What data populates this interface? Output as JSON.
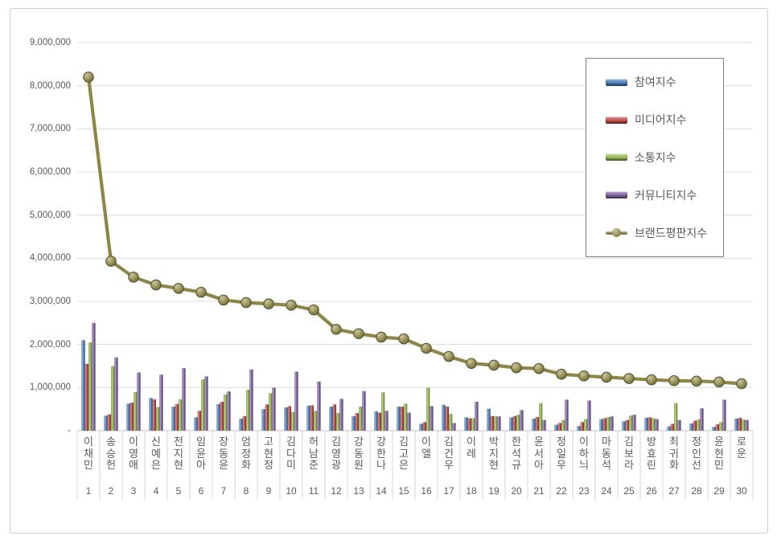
{
  "card": {
    "background": "#ffffff",
    "border_color": "#c9cdd2"
  },
  "chart_data": {
    "type": "bar",
    "subtype": "grouped-bars-with-line-overlay",
    "title": "",
    "categories": [
      "이채민",
      "송승헌",
      "이영애",
      "신예은",
      "전지현",
      "임윤아",
      "장동윤",
      "엄정화",
      "고현정",
      "김다미",
      "허남준",
      "김영광",
      "강동원",
      "강한나",
      "김고은",
      "이엘",
      "김건우",
      "이레",
      "박지현",
      "한석규",
      "윤서아",
      "정일우",
      "이하늬",
      "마동석",
      "김보라",
      "방효린",
      "최귀화",
      "정인선",
      "윤현민",
      "로운"
    ],
    "ranks": [
      "1",
      "2",
      "3",
      "4",
      "5",
      "6",
      "7",
      "8",
      "9",
      "10",
      "11",
      "12",
      "13",
      "14",
      "15",
      "16",
      "17",
      "18",
      "19",
      "20",
      "21",
      "22",
      "23",
      "24",
      "25",
      "26",
      "27",
      "28",
      "29",
      "30"
    ],
    "series": [
      {
        "name": "참여지수",
        "type": "bar",
        "color": "#4f81bd",
        "values": [
          2100000,
          350000,
          630000,
          760000,
          560000,
          310000,
          620000,
          280000,
          500000,
          540000,
          580000,
          560000,
          340000,
          450000,
          560000,
          160000,
          600000,
          310000,
          510000,
          310000,
          280000,
          140000,
          110000,
          270000,
          220000,
          300000,
          100000,
          170000,
          90000,
          280000
        ]
      },
      {
        "name": "미디어지수",
        "type": "bar",
        "color": "#c0504d",
        "values": [
          1550000,
          380000,
          650000,
          730000,
          620000,
          460000,
          670000,
          340000,
          610000,
          570000,
          590000,
          610000,
          410000,
          420000,
          560000,
          200000,
          560000,
          290000,
          340000,
          340000,
          320000,
          180000,
          200000,
          290000,
          250000,
          310000,
          160000,
          230000,
          150000,
          300000
        ]
      },
      {
        "name": "소통지수",
        "type": "bar",
        "color": "#9bbb59",
        "values": [
          2050000,
          1500000,
          900000,
          550000,
          730000,
          1190000,
          840000,
          950000,
          870000,
          430000,
          460000,
          410000,
          560000,
          890000,
          630000,
          1000000,
          390000,
          290000,
          340000,
          370000,
          640000,
          250000,
          270000,
          320000,
          350000,
          290000,
          640000,
          260000,
          200000,
          260000
        ]
      },
      {
        "name": "커뮤니티지수",
        "type": "bar",
        "color": "#8064a2",
        "values": [
          2500000,
          1700000,
          1350000,
          1300000,
          1450000,
          1260000,
          910000,
          1420000,
          1000000,
          1370000,
          1140000,
          740000,
          920000,
          460000,
          420000,
          570000,
          180000,
          670000,
          330000,
          480000,
          250000,
          720000,
          700000,
          330000,
          370000,
          270000,
          250000,
          520000,
          720000,
          250000
        ]
      },
      {
        "name": "브랜드평판지수",
        "type": "line",
        "color": "#8d8747",
        "marker_color": "#9a9457",
        "values": [
          8200000,
          3930000,
          3560000,
          3380000,
          3300000,
          3210000,
          3030000,
          2970000,
          2940000,
          2910000,
          2800000,
          2350000,
          2250000,
          2170000,
          2130000,
          1910000,
          1720000,
          1560000,
          1520000,
          1460000,
          1440000,
          1310000,
          1270000,
          1240000,
          1210000,
          1180000,
          1160000,
          1150000,
          1130000,
          1090000
        ]
      }
    ],
    "y_axis": {
      "min": 0,
      "max": 9000000,
      "step": 1000000,
      "tick_labels": [
        "-",
        "1,000,000",
        "2,000,000",
        "3,000,000",
        "4,000,000",
        "5,000,000",
        "6,000,000",
        "7,000,000",
        "8,000,000",
        "9,000,000"
      ]
    },
    "x_axis": {
      "label_rows": [
        "name",
        "rank"
      ],
      "text_color": "#595959"
    },
    "legend": {
      "position": "top-right",
      "border_color": "#7f7f7f",
      "entries": [
        "참여지수",
        "미디어지수",
        "소통지수",
        "커뮤니티지수",
        "브랜드평판지수"
      ]
    },
    "grid": true,
    "gridline_color": "#dcdcdc",
    "axis_line_color": "#c3c3c3"
  }
}
